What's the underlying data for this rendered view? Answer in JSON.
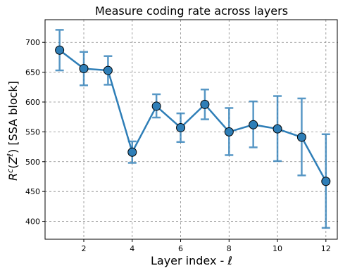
{
  "chart_data": {
    "type": "line",
    "title": "Measure coding rate across layers",
    "xlabel": "Layer index - ℓ",
    "ylabel": "R^c(Z^ℓ) [SSA block]",
    "xlim": [
      0.4,
      12.5
    ],
    "ylim": [
      370,
      738
    ],
    "xticks": [
      2,
      4,
      6,
      8,
      10,
      12
    ],
    "yticks": [
      400,
      450,
      500,
      550,
      600,
      650,
      700
    ],
    "grid": true,
    "colors": {
      "line": "#2e7eb7",
      "marker": "#2e7eb7",
      "error": "#2e7eb7"
    },
    "series": [
      {
        "x": [
          1,
          2,
          3,
          4,
          5,
          6,
          7,
          8,
          9,
          10,
          11,
          12
        ],
        "y": [
          687,
          656,
          653,
          516,
          593,
          557,
          596,
          550,
          562,
          555,
          541,
          467
        ],
        "err_low": [
          653,
          628,
          629,
          498,
          574,
          533,
          571,
          511,
          524,
          501,
          477,
          389
        ],
        "err_high": [
          721,
          684,
          677,
          534,
          613,
          581,
          621,
          590,
          601,
          610,
          606,
          546
        ]
      }
    ]
  }
}
